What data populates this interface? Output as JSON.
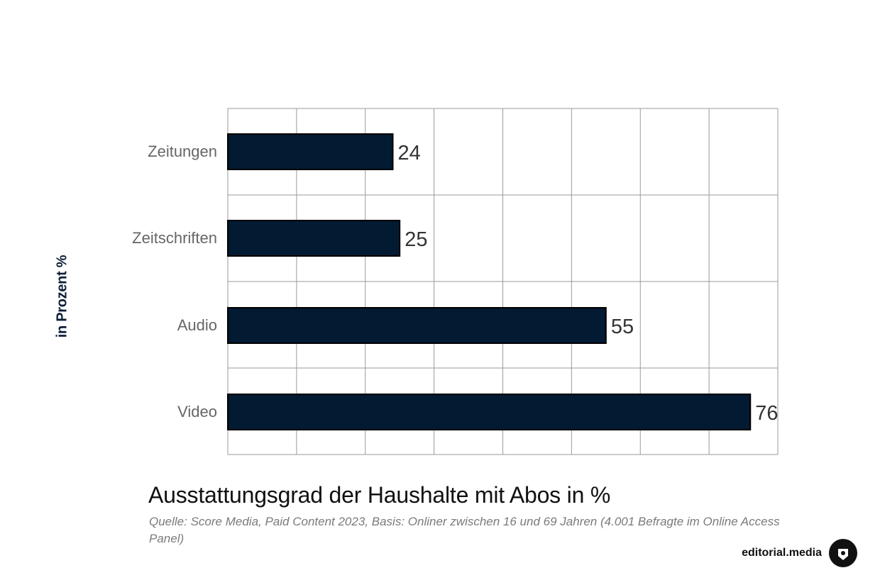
{
  "chart_data": {
    "type": "bar",
    "orientation": "horizontal",
    "title": "Ausstattungsgrad der Haushalte mit Abos in %",
    "ylabel": "in Prozent %",
    "xlabel": "",
    "categories": [
      "Zeitungen",
      "Zeitschriften",
      "Audio",
      "Video"
    ],
    "values": [
      24,
      25,
      55,
      76
    ],
    "value_labels": [
      "24",
      "25",
      "55",
      "76"
    ],
    "xlim": [
      0,
      80
    ],
    "grid": true,
    "bar_color": "#031a33",
    "grid_color": "#9a9a9a",
    "category_label_color": "#666666",
    "value_label_color": "#333333"
  },
  "source_text": "Quelle: Score Media, Paid Content 2023, Basis: Onliner zwischen 16 und 69 Jahren (4.001 Befragte im Online Access Panel)",
  "brand": {
    "name": "editorial.media",
    "icon": "editorial-media-logo-icon"
  },
  "colors": {
    "title": "#111111",
    "ylabel": "#0b1e36",
    "source": "#7a7a7a"
  }
}
